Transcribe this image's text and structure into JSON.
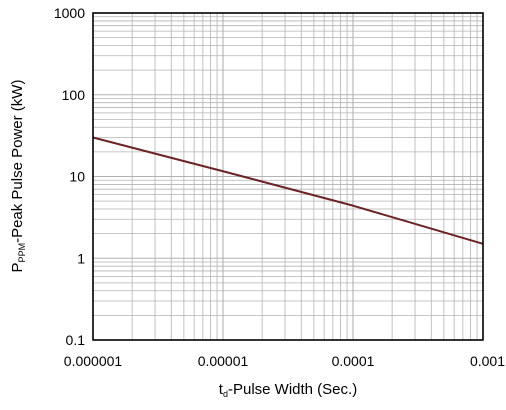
{
  "chart_data": {
    "type": "line",
    "title": "",
    "xlabel": {
      "main": "t",
      "sub": "d",
      "rest": "-Pulse Width (Sec.)"
    },
    "ylabel": {
      "main": "P",
      "sub": "PPM",
      "rest": "-Peak Pulse Power (kW)"
    },
    "xscale": "log",
    "yscale": "log",
    "xlim": [
      1e-06,
      0.001
    ],
    "ylim": [
      0.1,
      1000
    ],
    "xticks": [
      1e-06,
      1e-05,
      0.0001,
      0.001
    ],
    "xtick_labels": [
      "0.000001",
      "0.00001",
      "0.0001",
      "0.001"
    ],
    "yticks": [
      0.1,
      1,
      10,
      100,
      1000
    ],
    "ytick_labels": [
      "0.1",
      "1",
      "10",
      "100",
      "1000"
    ],
    "grid": true,
    "series": [
      {
        "color": "#6b2326",
        "x": [
          1e-06,
          1e-05,
          0.0001,
          0.001
        ],
        "y": [
          30,
          11.6,
          4.4,
          1.5
        ]
      }
    ]
  },
  "colors": {
    "grid": "#b3b3b3",
    "frame": "#000000",
    "background": "#ffffff"
  }
}
